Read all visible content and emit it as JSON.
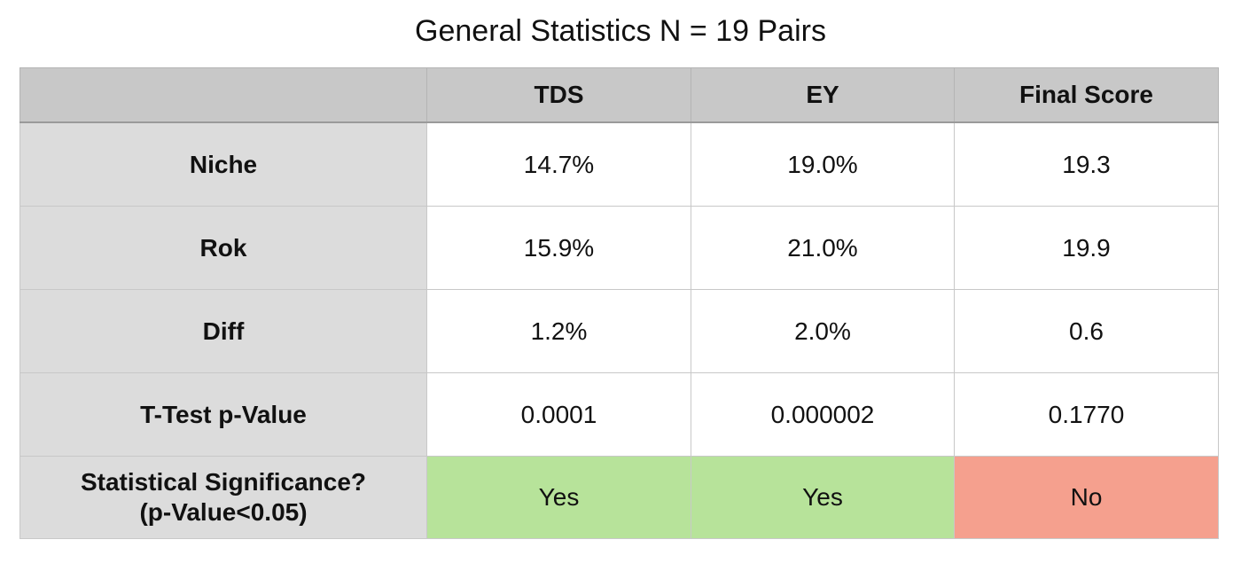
{
  "title": "General Statistics N = 19 Pairs",
  "table": {
    "columns": [
      "",
      "TDS",
      "EY",
      "Final Score"
    ],
    "rows": [
      {
        "label": "Niche",
        "values": [
          "14.7%",
          "19.0%",
          "19.3"
        ]
      },
      {
        "label": "Rok",
        "values": [
          "15.9%",
          "21.0%",
          "19.9"
        ]
      },
      {
        "label": "Diff",
        "values": [
          "1.2%",
          "2.0%",
          "0.6"
        ]
      },
      {
        "label": "T-Test p-Value",
        "values": [
          "0.0001",
          "0.000002",
          "0.1770"
        ]
      }
    ],
    "significance": {
      "label_line1": "Statistical Significance?",
      "label_line2": "(p-Value<0.05)",
      "values": [
        "Yes",
        "Yes",
        "No"
      ]
    }
  },
  "colors": {
    "yes": "#b7e39a",
    "no": "#f5a08e",
    "header": "#c8c8c8",
    "row_label": "#dcdcdc"
  }
}
